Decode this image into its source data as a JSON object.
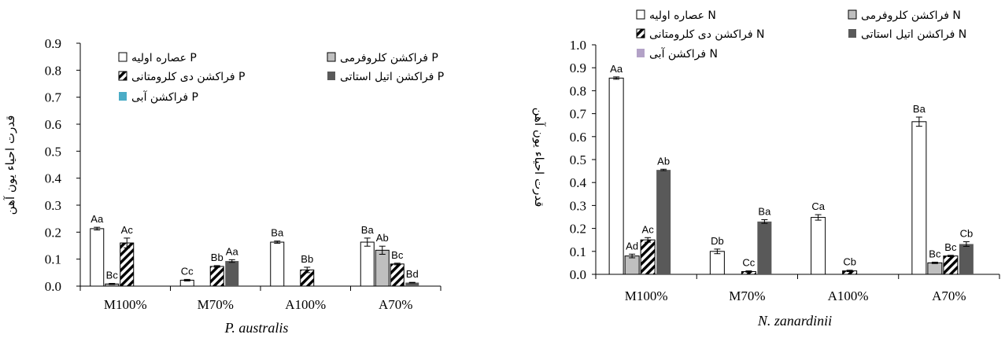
{
  "colors": {
    "initial": "#ffffff",
    "chloroform": "#bfbfbf",
    "dichloromethane": "hatch",
    "ethylacetate": "#595959",
    "aqueous_left": "#4bacc6",
    "aqueous_right": "#b3a2c7"
  },
  "chart_data": [
    {
      "type": "bar",
      "title": "",
      "xlabel": "P. australis",
      "ylabel": "قدرت احیاء یون آهن",
      "ylim": [
        0,
        0.9
      ],
      "yticks": [
        "0.0",
        "0.1",
        "0.2",
        "0.3",
        "0.4",
        "0.5",
        "0.6",
        "0.7",
        "0.8",
        "0.9"
      ],
      "categories": [
        "M100%",
        "M70%",
        "A100%",
        "A70%"
      ],
      "grid": false,
      "legend_position": "top",
      "series": [
        {
          "name": "P عصاره اولیه",
          "key": "initial",
          "values": [
            0.213,
            0.022,
            0.163,
            0.163
          ],
          "errors": [
            0.005,
            0.003,
            0.004,
            0.015
          ],
          "labels": [
            "Aa",
            "Cc",
            "Ba",
            "Ba"
          ]
        },
        {
          "name": "P فراکشن کلروفرمی",
          "key": "chloroform",
          "values": [
            0.008,
            0,
            0,
            0.133
          ],
          "errors": [
            0.002,
            0,
            0,
            0.015
          ],
          "labels": [
            "Bc",
            "",
            "",
            "Ab"
          ]
        },
        {
          "name": "P فراکشن دی کلرومتانی",
          "key": "dichloromethane",
          "values": [
            0.16,
            0.073,
            0.06,
            0.082
          ],
          "errors": [
            0.018,
            0.003,
            0.01,
            0.003
          ],
          "labels": [
            "Ac",
            "Bb",
            "Bb",
            "Bc"
          ]
        },
        {
          "name": "P فراکشن اتیل استاتی",
          "key": "ethylacetate",
          "values": [
            0,
            0.093,
            0,
            0.013
          ],
          "errors": [
            0,
            0.005,
            0,
            0.001
          ],
          "labels": [
            "",
            "Aa",
            "",
            "Bd"
          ]
        },
        {
          "name": "P فراکشن آبی",
          "key": "aqueous_left",
          "values": [
            0,
            0,
            0,
            0
          ],
          "errors": [
            0,
            0,
            0,
            0
          ],
          "labels": [
            "",
            "",
            "",
            ""
          ]
        }
      ]
    },
    {
      "type": "bar",
      "title": "",
      "xlabel": "N. zanardinii",
      "ylabel": "قدرت احیاء یون آهن",
      "ylim": [
        0,
        1.0
      ],
      "yticks": [
        "0.0",
        "0.1",
        "0.2",
        "0.3",
        "0.4",
        "0.5",
        "0.6",
        "0.7",
        "0.8",
        "0.9",
        "1.0"
      ],
      "categories": [
        "M100%",
        "M70%",
        "A100%",
        "A70%"
      ],
      "grid": false,
      "legend_position": "top",
      "series": [
        {
          "name": "N عصاره اولیه",
          "key": "initial",
          "values": [
            0.855,
            0.1,
            0.248,
            0.665
          ],
          "errors": [
            0.005,
            0.01,
            0.012,
            0.02
          ],
          "labels": [
            "Aa",
            "Db",
            "Ca",
            "Ba"
          ]
        },
        {
          "name": "N فراکشن کلروفرمی",
          "key": "chloroform",
          "values": [
            0.08,
            0,
            0,
            0.05
          ],
          "errors": [
            0.008,
            0,
            0,
            0.003
          ],
          "labels": [
            "Ad",
            "",
            "",
            "Bc"
          ]
        },
        {
          "name": "N فراکشن دی کلرومتانی",
          "key": "dichloromethane",
          "values": [
            0.15,
            0.012,
            0.015,
            0.08
          ],
          "errors": [
            0.01,
            0.003,
            0.003,
            0.003
          ],
          "labels": [
            "Ac",
            "Cc",
            "Cb",
            "Bc"
          ]
        },
        {
          "name": "N فراکشن اتیل استاتی",
          "key": "ethylacetate",
          "values": [
            0.455,
            0.23,
            0,
            0.132
          ],
          "errors": [
            0.003,
            0.008,
            0,
            0.01
          ],
          "labels": [
            "Ab",
            "Ba",
            "",
            "Cb"
          ]
        },
        {
          "name": "N فراکشن آبی",
          "key": "aqueous_right",
          "values": [
            0,
            0,
            0,
            0
          ],
          "errors": [
            0,
            0,
            0,
            0
          ],
          "labels": [
            "",
            "",
            "",
            ""
          ]
        }
      ]
    }
  ]
}
